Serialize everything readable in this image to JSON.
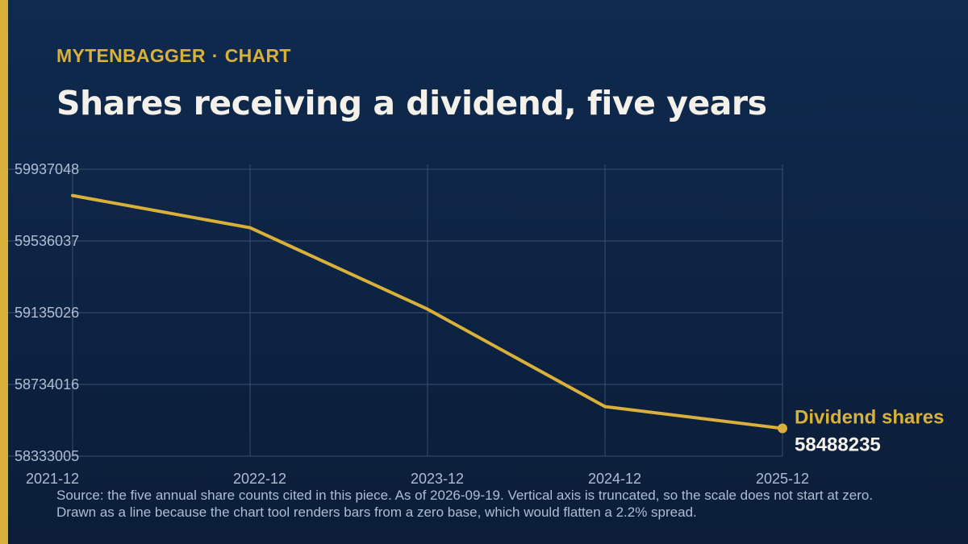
{
  "header": {
    "kicker_brand": "MYTENBAGGER",
    "kicker_separator": "·",
    "kicker_section": "CHART",
    "title": "Shares receiving a dividend, five years"
  },
  "colors": {
    "accent": "#d8b03a",
    "background_top": "#0f2a4f",
    "background_bottom": "#0b1d38",
    "text": "#f4f1ea",
    "muted": "#aebdd2",
    "grid": "#3a4f6e"
  },
  "chart_data": {
    "type": "line",
    "categories": [
      "2021-12",
      "2022-12",
      "2023-12",
      "2024-12",
      "2025-12"
    ],
    "series": [
      {
        "name": "Dividend shares",
        "values": [
          59790000,
          59610000,
          59155000,
          58610000,
          58488235
        ],
        "end_label": "58488235"
      }
    ],
    "y_ticks": [
      "58333005",
      "58734016",
      "59135026",
      "59536037",
      "59937048"
    ],
    "ylim": [
      58333005,
      59937048
    ],
    "grid": true,
    "legend": "none",
    "label_placement": "end-of-line"
  },
  "footer": {
    "source": "Source: the five annual share counts cited in this piece. As of 2026-09-19. Vertical axis is truncated, so the scale does not start at zero. Drawn as a line because the chart tool renders bars from a zero base, which would flatten a 2.2% spread."
  }
}
